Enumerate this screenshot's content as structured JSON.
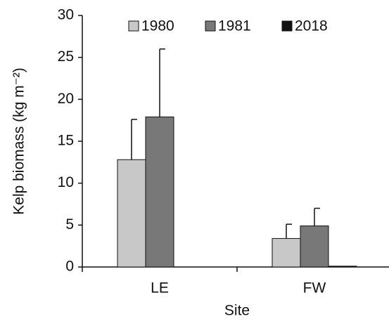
{
  "chart_data": {
    "type": "bar",
    "x_label": "Site",
    "y_label": "Kelp biomass (kg m⁻²)",
    "categories": [
      "LE",
      "FW"
    ],
    "series": [
      {
        "name": "1980",
        "color": "#c8c8c8",
        "values": [
          12.8,
          3.4
        ],
        "errors": [
          4.8,
          1.7
        ]
      },
      {
        "name": "1981",
        "color": "#787878",
        "values": [
          17.9,
          4.9
        ],
        "errors": [
          8.1,
          2.1
        ]
      },
      {
        "name": "2018",
        "color": "#111111",
        "values": [
          0,
          0.1
        ],
        "errors": [
          null,
          null
        ]
      }
    ],
    "ylim": [
      0,
      30
    ],
    "yticks": [
      0,
      5,
      10,
      15,
      20,
      25,
      30
    ],
    "legend": "top"
  }
}
